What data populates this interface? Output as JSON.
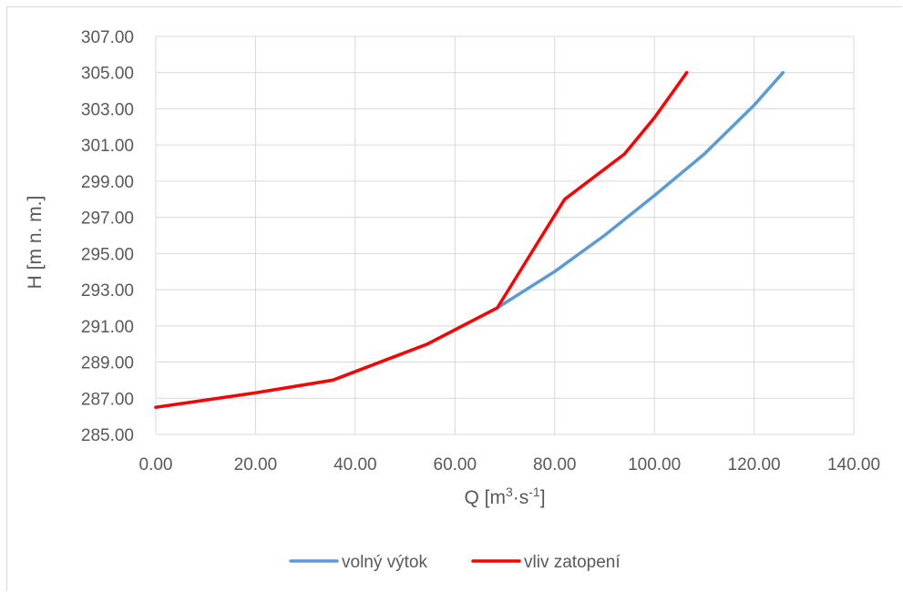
{
  "chart_data": {
    "type": "line",
    "xlabel": "Q [m³·s⁻¹]",
    "xlabel_parts": {
      "base": "Q [m",
      "sup1": "3",
      "mid": "·s",
      "sup2": "-1",
      "end": "]"
    },
    "ylabel": "H [m n. m.]",
    "xlim": [
      0,
      140
    ],
    "ylim": [
      285,
      307
    ],
    "x_ticks": [
      0,
      20,
      40,
      60,
      80,
      100,
      120,
      140
    ],
    "y_ticks": [
      285,
      287,
      289,
      291,
      293,
      295,
      297,
      299,
      301,
      303,
      305,
      307
    ],
    "x_tick_labels": [
      "0.00",
      "20.00",
      "40.00",
      "60.00",
      "80.00",
      "100.00",
      "120.00",
      "140.00"
    ],
    "y_tick_labels": [
      "285.00",
      "287.00",
      "289.00",
      "291.00",
      "293.00",
      "295.00",
      "297.00",
      "299.00",
      "301.00",
      "303.00",
      "305.00",
      "307.00"
    ],
    "grid": true,
    "legend_position": "bottom",
    "series": [
      {
        "name": "volný výtok",
        "color": "#5b9bd5",
        "points": [
          [
            0,
            286.5
          ],
          [
            20,
            287.3
          ],
          [
            35.5,
            288
          ],
          [
            54.5,
            290
          ],
          [
            68.5,
            292
          ],
          [
            80,
            294
          ],
          [
            90,
            296
          ],
          [
            100,
            298.2
          ],
          [
            110,
            300.5
          ],
          [
            120,
            303.2
          ],
          [
            125.8,
            305
          ]
        ]
      },
      {
        "name": "vliv zatopení",
        "color": "#ff0000",
        "points": [
          [
            0,
            286.5
          ],
          [
            20,
            287.3
          ],
          [
            35.5,
            288
          ],
          [
            54.5,
            290
          ],
          [
            68.5,
            292
          ],
          [
            77.5,
            296
          ],
          [
            82,
            298
          ],
          [
            94,
            300.5
          ],
          [
            100,
            302.5
          ],
          [
            106.5,
            305
          ]
        ]
      }
    ]
  }
}
